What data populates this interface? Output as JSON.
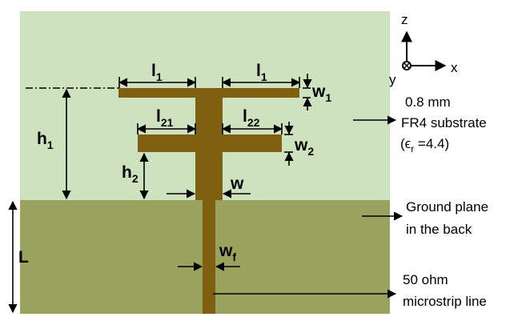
{
  "axes": {
    "z": "z",
    "x": "x",
    "y": "y"
  },
  "dimensions": {
    "l1_main": "l",
    "l1_sub": "1",
    "l21_main": "l",
    "l21_sub": "21",
    "l22_main": "l",
    "l22_sub": "22",
    "w1_main": "w",
    "w1_sub": "1",
    "w2_main": "w",
    "w2_sub": "2",
    "h1_main": "h",
    "h1_sub": "1",
    "h2_main": "h",
    "h2_sub": "2",
    "w": "w",
    "wf_main": "w",
    "wf_sub": "f",
    "L": "L"
  },
  "annotations": {
    "thickness": "0.8 mm",
    "substrate": "FR4 substrate",
    "permittivity_open": "(ϵ",
    "permittivity_sub": "r",
    "permittivity_close": " =4.4)",
    "ground_line1": "Ground plane",
    "ground_line2": "in the back",
    "feed_line1": "50 ohm",
    "feed_line2": "microstrip line"
  },
  "colors": {
    "substrate": "#cfe2bf",
    "ground": "#9aa35d",
    "copper": "#7f5f10",
    "annotation": "#000000"
  }
}
